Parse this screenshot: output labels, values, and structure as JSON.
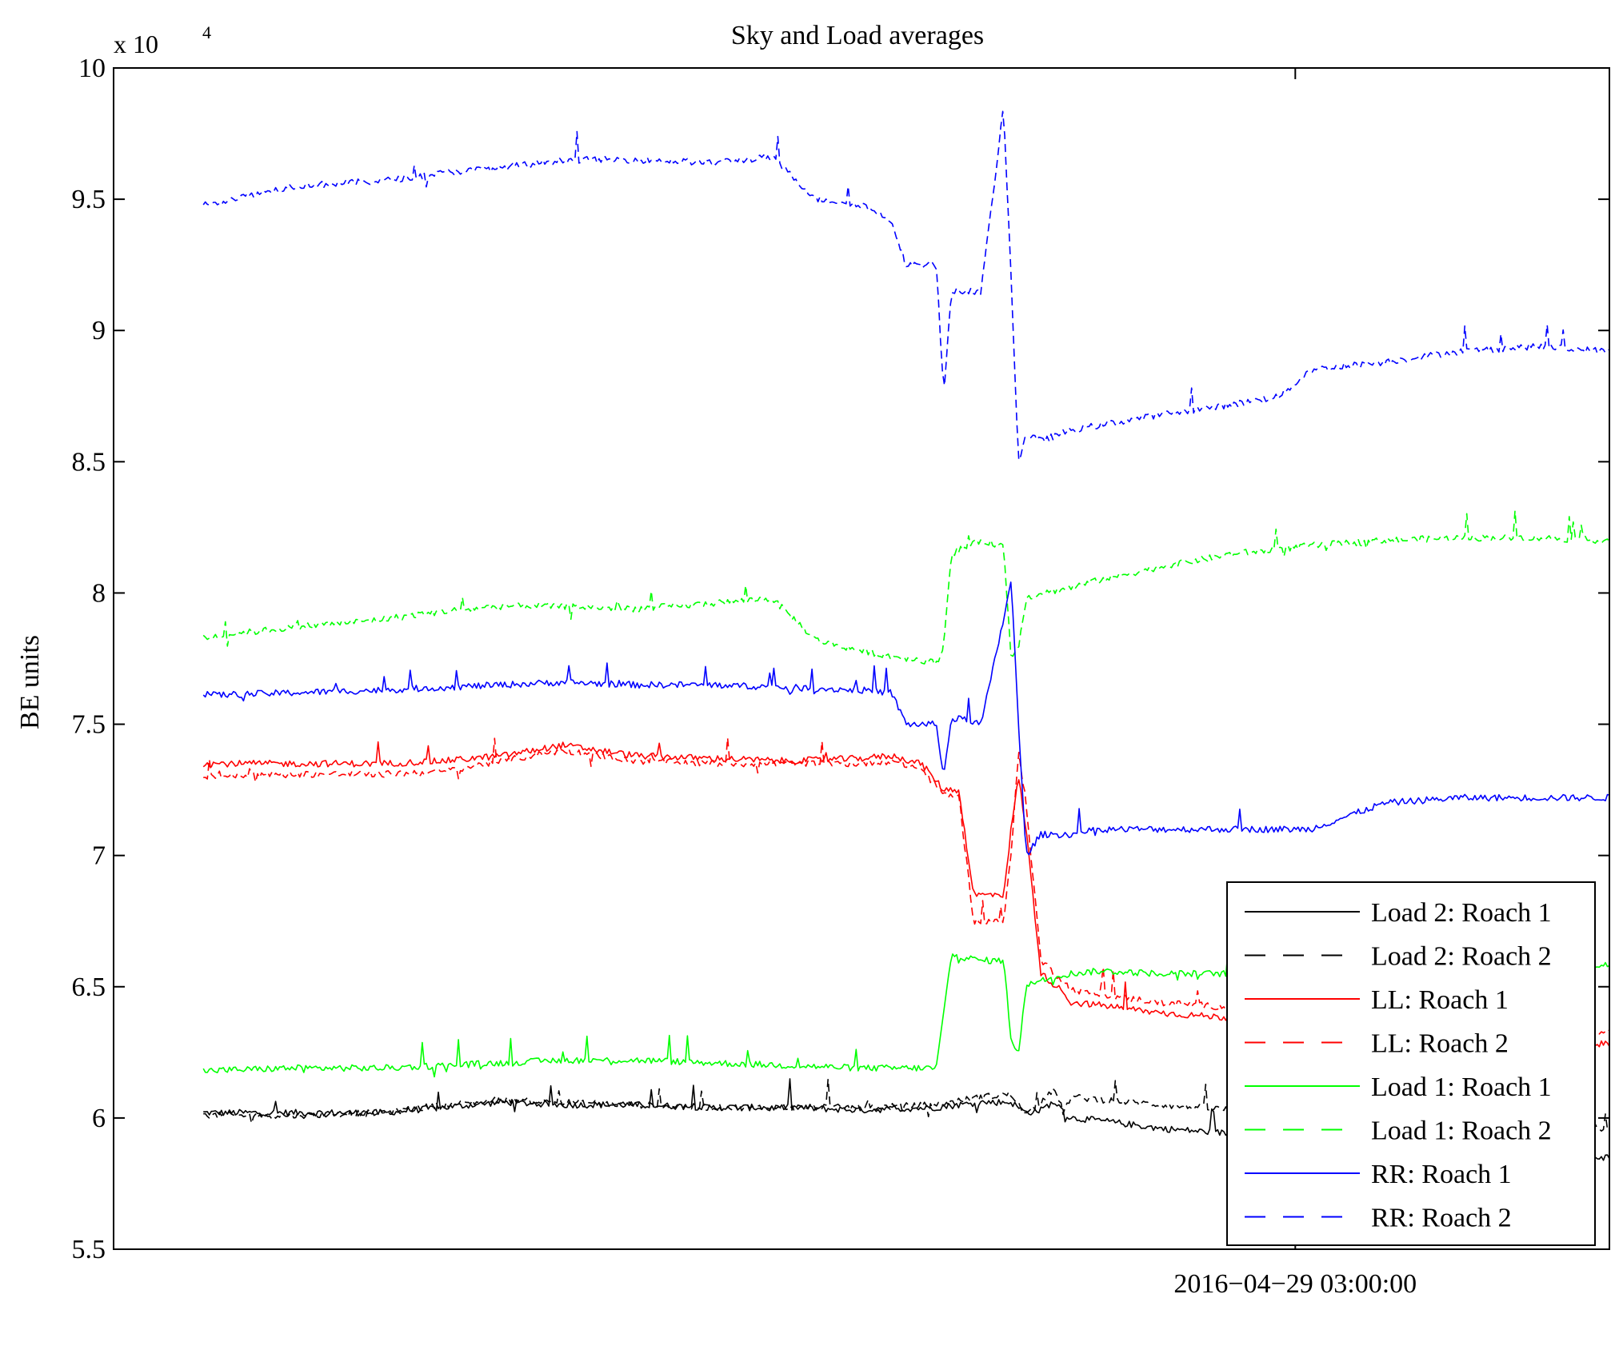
{
  "chart_data": {
    "type": "line",
    "title": "Sky and Load averages",
    "xlabel": "",
    "ylabel": "BE units",
    "y_multiplier_label": "x 10",
    "y_multiplier_exponent": "4",
    "ylim": [
      5.5,
      10
    ],
    "yticks": [
      5.5,
      6,
      6.5,
      7,
      7.5,
      8,
      8.5,
      9,
      9.5,
      10
    ],
    "ytick_labels": [
      "5.5",
      "6",
      "6.5",
      "7",
      "7.5",
      "8",
      "8.5",
      "9",
      "9.5",
      "10"
    ],
    "xlim": [
      0,
      100
    ],
    "xticks": [
      {
        "x": 79,
        "label": "2016−04−29 03:00:00"
      }
    ],
    "legend_position": "bottom-right",
    "series": [
      {
        "name": "Load 2: Roach 1",
        "color": "#000000",
        "style": "solid",
        "x": [
          6,
          12,
          18,
          22,
          26,
          30,
          35,
          40,
          45,
          50,
          55,
          58,
          60,
          61,
          62,
          62.5,
          63,
          63.5,
          64,
          66,
          70,
          75,
          80,
          85,
          90,
          95,
          100
        ],
        "y": [
          6.02,
          6.02,
          6.02,
          6.04,
          6.06,
          6.05,
          6.05,
          6.04,
          6.04,
          6.03,
          6.04,
          6.06,
          6.06,
          6.02,
          6.03,
          6.05,
          6.06,
          6.02,
          6.0,
          5.99,
          5.96,
          5.94,
          5.92,
          5.9,
          5.88,
          5.86,
          5.85
        ]
      },
      {
        "name": "Load 2: Roach 2",
        "color": "#000000",
        "style": "dashed",
        "x": [
          6,
          12,
          18,
          22,
          26,
          30,
          35,
          40,
          45,
          50,
          55,
          58,
          60,
          61,
          62,
          62.5,
          63,
          63.5,
          64,
          66,
          70,
          75,
          80,
          85,
          90,
          95,
          100
        ],
        "y": [
          6.01,
          6.01,
          6.02,
          6.05,
          6.07,
          6.06,
          6.05,
          6.04,
          6.04,
          6.04,
          6.05,
          6.08,
          6.09,
          6.01,
          6.06,
          6.1,
          6.1,
          6.02,
          6.08,
          6.07,
          6.05,
          6.03,
          6.02,
          6.01,
          6.0,
          5.98,
          5.96
        ]
      },
      {
        "name": "LL: Roach 1",
        "color": "#ff0000",
        "style": "solid",
        "x": [
          6,
          12,
          18,
          22,
          26,
          30,
          35,
          40,
          45,
          50,
          52,
          54,
          55.5,
          56.5,
          57.5,
          59.5,
          60,
          60.5,
          61,
          62,
          63.5,
          64,
          66,
          70,
          75,
          80,
          85,
          90,
          95,
          100
        ],
        "y": [
          7.35,
          7.35,
          7.35,
          7.36,
          7.38,
          7.42,
          7.38,
          7.37,
          7.36,
          7.37,
          7.38,
          7.35,
          7.25,
          7.25,
          6.85,
          6.85,
          7.1,
          7.3,
          7.1,
          6.55,
          6.48,
          6.44,
          6.43,
          6.4,
          6.38,
          6.35,
          6.34,
          6.32,
          6.3,
          6.28
        ]
      },
      {
        "name": "LL: Roach 2",
        "color": "#ff0000",
        "style": "dashed",
        "x": [
          6,
          12,
          18,
          22,
          26,
          30,
          35,
          40,
          45,
          50,
          52,
          54,
          55.5,
          56.5,
          57.5,
          59.5,
          60,
          60.5,
          61,
          62,
          63.5,
          64,
          66,
          70,
          75,
          80,
          85,
          90,
          95,
          100
        ],
        "y": [
          7.3,
          7.31,
          7.31,
          7.32,
          7.36,
          7.4,
          7.36,
          7.35,
          7.35,
          7.35,
          7.36,
          7.33,
          7.23,
          7.23,
          6.75,
          6.75,
          7.0,
          7.4,
          7.2,
          6.6,
          6.52,
          6.49,
          6.47,
          6.44,
          6.42,
          6.4,
          6.39,
          6.37,
          6.35,
          6.33
        ]
      },
      {
        "name": "Load 1: Roach 1",
        "color": "#00ff00",
        "style": "solid",
        "x": [
          6,
          12,
          18,
          22,
          26,
          30,
          35,
          40,
          45,
          50,
          52,
          54.5,
          55,
          55.5,
          56,
          58,
          59.5,
          60,
          60.5,
          61,
          62,
          64,
          66,
          70,
          75,
          80,
          85,
          90,
          95,
          100
        ],
        "y": [
          6.18,
          6.19,
          6.19,
          6.2,
          6.21,
          6.22,
          6.22,
          6.21,
          6.2,
          6.19,
          6.19,
          6.19,
          6.19,
          6.4,
          6.62,
          6.6,
          6.6,
          6.3,
          6.25,
          6.5,
          6.53,
          6.55,
          6.56,
          6.55,
          6.55,
          6.57,
          6.58,
          6.58,
          6.59,
          6.58
        ]
      },
      {
        "name": "Load 1: Roach 2",
        "color": "#00ff00",
        "style": "dashed",
        "x": [
          6,
          12,
          18,
          22,
          26,
          30,
          35,
          40,
          44,
          47,
          50,
          52,
          54.5,
          55,
          55.5,
          56,
          58,
          59.5,
          60,
          60.5,
          61,
          62,
          64,
          66,
          70,
          75,
          80,
          85,
          90,
          95,
          100
        ],
        "y": [
          7.83,
          7.87,
          7.9,
          7.93,
          7.95,
          7.95,
          7.94,
          7.96,
          7.98,
          7.82,
          7.78,
          7.76,
          7.74,
          7.73,
          7.8,
          8.15,
          8.2,
          8.18,
          7.75,
          7.8,
          7.98,
          8.0,
          8.02,
          8.05,
          8.1,
          8.15,
          8.18,
          8.2,
          8.21,
          8.21,
          8.2
        ]
      },
      {
        "name": "RR: Roach 1",
        "color": "#0000ff",
        "style": "solid",
        "x": [
          6,
          12,
          18,
          22,
          26,
          30,
          35,
          40,
          45,
          50,
          52,
          53,
          54.5,
          55,
          55.5,
          56,
          57,
          58,
          59.5,
          60,
          60.5,
          61,
          62,
          64,
          66,
          70,
          75,
          78,
          80,
          85,
          90,
          95,
          100
        ],
        "y": [
          7.61,
          7.62,
          7.63,
          7.64,
          7.65,
          7.66,
          7.65,
          7.65,
          7.64,
          7.63,
          7.62,
          7.5,
          7.5,
          7.5,
          7.3,
          7.52,
          7.52,
          7.5,
          7.9,
          8.05,
          7.5,
          7.0,
          7.08,
          7.08,
          7.1,
          7.1,
          7.1,
          7.1,
          7.1,
          7.2,
          7.22,
          7.22,
          7.22
        ]
      },
      {
        "name": "RR: Roach 2",
        "color": "#0000ff",
        "style": "dashed",
        "x": [
          6,
          12,
          18,
          22,
          26,
          30,
          35,
          40,
          44,
          47,
          50,
          52,
          53,
          54.5,
          55,
          55.5,
          56,
          57,
          58,
          59.5,
          60,
          60.5,
          61,
          62,
          64,
          66,
          70,
          75,
          78,
          80,
          85,
          90,
          95,
          100
        ],
        "y": [
          9.48,
          9.55,
          9.57,
          9.6,
          9.62,
          9.65,
          9.65,
          9.64,
          9.66,
          9.5,
          9.48,
          9.42,
          9.25,
          9.25,
          9.25,
          8.75,
          9.15,
          9.15,
          9.15,
          9.85,
          9.2,
          8.5,
          8.6,
          8.58,
          8.62,
          8.64,
          8.68,
          8.72,
          8.75,
          8.85,
          8.88,
          8.92,
          8.94,
          8.92
        ]
      }
    ]
  }
}
